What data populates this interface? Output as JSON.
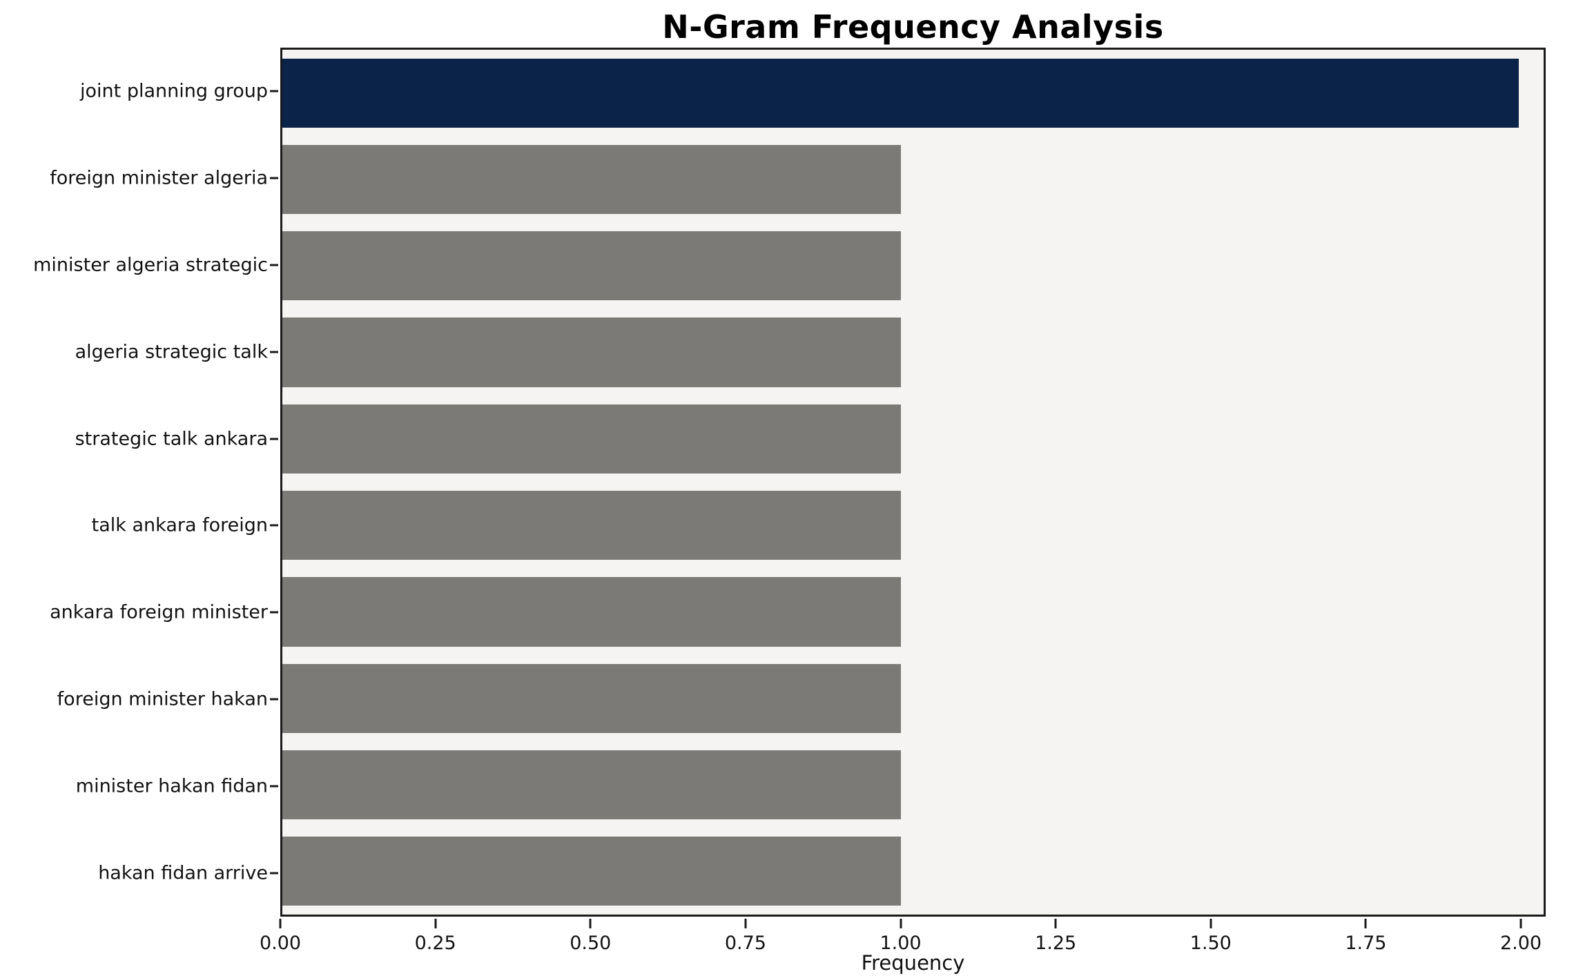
{
  "chart_data": {
    "type": "bar",
    "orientation": "horizontal",
    "title": "N-Gram Frequency Analysis",
    "xlabel": "Frequency",
    "ylabel": "",
    "categories": [
      "joint planning group",
      "foreign minister algeria",
      "minister algeria strategic",
      "algeria strategic talk",
      "strategic talk ankara",
      "talk ankara foreign",
      "ankara foreign minister",
      "foreign minister hakan",
      "minister hakan fidan",
      "hakan fidan arrive"
    ],
    "values": [
      2,
      1,
      1,
      1,
      1,
      1,
      1,
      1,
      1,
      1
    ],
    "xlim": [
      0,
      2.04
    ],
    "xticks": [
      0.0,
      0.25,
      0.5,
      0.75,
      1.0,
      1.25,
      1.5,
      1.75,
      2.0
    ],
    "xtick_labels": [
      "0.00",
      "0.25",
      "0.50",
      "0.75",
      "1.00",
      "1.25",
      "1.50",
      "1.75",
      "2.00"
    ],
    "grid": false,
    "legend": false,
    "plot_background": "#f5f4f2",
    "bar_colors": {
      "highlight": "#0b2249",
      "default": "#7b7a76"
    },
    "highlight_index": 0,
    "bar_height_fraction": 0.8
  }
}
